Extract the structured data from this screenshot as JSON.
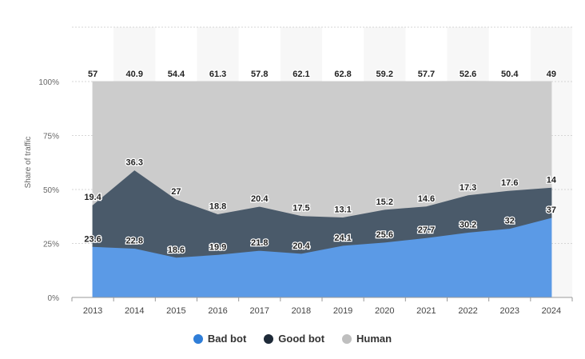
{
  "chart_data": {
    "type": "area",
    "stacked": true,
    "title": "",
    "xlabel": "",
    "ylabel": "Share of traffic",
    "ylim": [
      0,
      100
    ],
    "y_ticks": [
      "0%",
      "25%",
      "50%",
      "75%",
      "100%"
    ],
    "grid": true,
    "legend_position": "bottom-center",
    "categories": [
      "2013",
      "2014",
      "2015",
      "2016",
      "2017",
      "2018",
      "2019",
      "2020",
      "2021",
      "2022",
      "2023",
      "2024"
    ],
    "series": [
      {
        "name": "Bad bot",
        "color": "#5b9ae6",
        "values": [
          23.6,
          22.8,
          18.6,
          19.9,
          21.8,
          20.4,
          24.1,
          25.6,
          27.7,
          30.2,
          32,
          37
        ]
      },
      {
        "name": "Good bot",
        "color": "#4a5a6a",
        "values": [
          19.4,
          36.3,
          27,
          18.8,
          20.4,
          17.5,
          13.1,
          15.2,
          14.6,
          17.3,
          17.6,
          14
        ]
      },
      {
        "name": "Human",
        "color": "#cccccc",
        "values": [
          57,
          40.9,
          54.4,
          61.3,
          57.8,
          62.1,
          62.8,
          59.2,
          57.7,
          52.6,
          50.4,
          49
        ]
      }
    ]
  },
  "legend": [
    {
      "label": "Bad bot",
      "color": "#2f7ed8"
    },
    {
      "label": "Good bot",
      "color": "#1e2a38"
    },
    {
      "label": "Human",
      "color": "#bfbfbf"
    }
  ]
}
